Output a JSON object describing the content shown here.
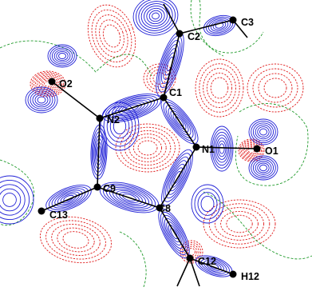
{
  "diagram": {
    "type": "deformation-density-contour-map",
    "colors": {
      "positive_contour": "#1f1fd6",
      "negative_contour": "#e01a1a",
      "zero_contour": "#1f9a2a",
      "bond": "#000000",
      "atom": "#000000",
      "background": "#ffffff"
    },
    "atoms": [
      {
        "id": "C2",
        "label": "C2"
      },
      {
        "id": "C3",
        "label": "C3"
      },
      {
        "id": "O2",
        "label": "O2"
      },
      {
        "id": "N2",
        "label": "N2"
      },
      {
        "id": "C1",
        "label": "C1"
      },
      {
        "id": "N1",
        "label": "N1"
      },
      {
        "id": "O1",
        "label": "O1"
      },
      {
        "id": "C9",
        "label": "C9"
      },
      {
        "id": "C13",
        "label": "C13"
      },
      {
        "id": "C8",
        "label": "C8"
      },
      {
        "id": "C12",
        "label": "C12"
      },
      {
        "id": "H12",
        "label": "H12"
      }
    ],
    "bonds": [
      [
        "C2",
        "C3"
      ],
      [
        "C2",
        "C1"
      ],
      [
        "C1",
        "N2"
      ],
      [
        "C1",
        "N1"
      ],
      [
        "N2",
        "O2"
      ],
      [
        "N2",
        "C9"
      ],
      [
        "N1",
        "O1"
      ],
      [
        "N1",
        "C8"
      ],
      [
        "C9",
        "C8"
      ],
      [
        "C9",
        "C13"
      ],
      [
        "C8",
        "C12"
      ],
      [
        "C12",
        "H12"
      ]
    ]
  }
}
